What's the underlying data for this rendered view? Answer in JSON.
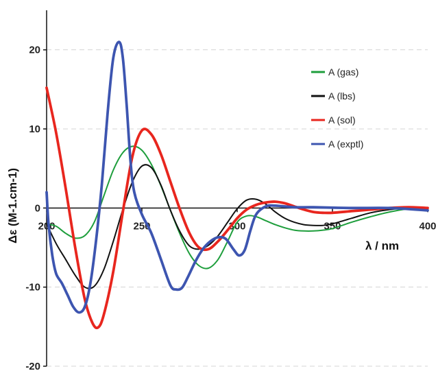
{
  "chart_data": {
    "type": "line",
    "title": "",
    "xlabel": "λ / nm",
    "ylabel": "Δε (M-1.cm-1)",
    "xlim": [
      200,
      400
    ],
    "ylim": [
      -20,
      25
    ],
    "x_ticks": [
      "200",
      "250",
      "300",
      "350",
      "400"
    ],
    "y_ticks": [
      "20",
      "10",
      "0",
      "-10",
      "-20"
    ],
    "grid": "horizontal dashed",
    "legend_position": "right",
    "series": [
      {
        "name": "A (gas)",
        "color": "#1e9e3c",
        "points": [
          [
            200,
            -2
          ],
          [
            205,
            -2.3
          ],
          [
            210,
            -3.2
          ],
          [
            215,
            -3.8
          ],
          [
            220,
            -3.5
          ],
          [
            225,
            -1.8
          ],
          [
            230,
            1.5
          ],
          [
            235,
            4.8
          ],
          [
            240,
            7
          ],
          [
            245,
            7.8
          ],
          [
            250,
            7.3
          ],
          [
            255,
            5.5
          ],
          [
            260,
            2.8
          ],
          [
            265,
            -0.3
          ],
          [
            270,
            -3.3
          ],
          [
            275,
            -5.8
          ],
          [
            280,
            -7.3
          ],
          [
            285,
            -7.6
          ],
          [
            290,
            -6.5
          ],
          [
            295,
            -4.2
          ],
          [
            300,
            -1.8
          ],
          [
            305,
            -1
          ],
          [
            310,
            -1.1
          ],
          [
            315,
            -1.6
          ],
          [
            320,
            -2.1
          ],
          [
            325,
            -2.5
          ],
          [
            330,
            -2.8
          ],
          [
            335,
            -2.9
          ],
          [
            340,
            -2.9
          ],
          [
            345,
            -2.8
          ],
          [
            350,
            -2.6
          ],
          [
            360,
            -1.8
          ],
          [
            370,
            -1.1
          ],
          [
            380,
            -0.5
          ],
          [
            390,
            -0.1
          ],
          [
            400,
            0
          ]
        ]
      },
      {
        "name": "A (lbs)",
        "color": "#111111",
        "points": [
          [
            200,
            -2
          ],
          [
            205,
            -4.5
          ],
          [
            210,
            -6.5
          ],
          [
            215,
            -8.5
          ],
          [
            220,
            -10
          ],
          [
            225,
            -9.9
          ],
          [
            230,
            -7.8
          ],
          [
            235,
            -4.2
          ],
          [
            240,
            -0.2
          ],
          [
            245,
            3.3
          ],
          [
            250,
            5.3
          ],
          [
            255,
            5.1
          ],
          [
            260,
            2.9
          ],
          [
            265,
            -0.3
          ],
          [
            270,
            -3
          ],
          [
            275,
            -4.8
          ],
          [
            280,
            -5.2
          ],
          [
            285,
            -4.7
          ],
          [
            290,
            -3.5
          ],
          [
            295,
            -1.8
          ],
          [
            300,
            -0.1
          ],
          [
            305,
            1
          ],
          [
            310,
            1.1
          ],
          [
            315,
            0.5
          ],
          [
            320,
            -0.5
          ],
          [
            325,
            -1.3
          ],
          [
            330,
            -1.8
          ],
          [
            335,
            -2.1
          ],
          [
            340,
            -2.2
          ],
          [
            345,
            -2.2
          ],
          [
            350,
            -2
          ],
          [
            360,
            -1.3
          ],
          [
            370,
            -0.6
          ],
          [
            380,
            -0.2
          ],
          [
            390,
            0
          ],
          [
            400,
            0
          ]
        ]
      },
      {
        "name": "A (sol)",
        "color": "#e8261e",
        "points": [
          [
            200,
            15.2
          ],
          [
            205,
            9.5
          ],
          [
            210,
            2.5
          ],
          [
            215,
            -5
          ],
          [
            220,
            -11.5
          ],
          [
            224,
            -14.5
          ],
          [
            227,
            -15.1
          ],
          [
            230,
            -13.5
          ],
          [
            235,
            -8
          ],
          [
            240,
            -0.5
          ],
          [
            245,
            6.5
          ],
          [
            250,
            9.8
          ],
          [
            255,
            9.3
          ],
          [
            260,
            6.8
          ],
          [
            265,
            3.3
          ],
          [
            270,
            -0.2
          ],
          [
            275,
            -3.2
          ],
          [
            280,
            -5
          ],
          [
            285,
            -5.2
          ],
          [
            290,
            -4.2
          ],
          [
            295,
            -2.8
          ],
          [
            300,
            -1.3
          ],
          [
            305,
            -0.2
          ],
          [
            310,
            0.4
          ],
          [
            315,
            0.7
          ],
          [
            320,
            0.8
          ],
          [
            325,
            0.6
          ],
          [
            330,
            0.2
          ],
          [
            335,
            -0.2
          ],
          [
            340,
            -0.5
          ],
          [
            345,
            -0.6
          ],
          [
            350,
            -0.6
          ],
          [
            360,
            -0.4
          ],
          [
            370,
            -0.2
          ],
          [
            380,
            0
          ],
          [
            390,
            0.1
          ],
          [
            400,
            0
          ]
        ]
      },
      {
        "name": "A (exptl)",
        "color": "#3d55b0",
        "points": [
          [
            200,
            2
          ],
          [
            201,
            -2
          ],
          [
            203,
            -6
          ],
          [
            205,
            -8.3
          ],
          [
            208,
            -9.5
          ],
          [
            211,
            -11
          ],
          [
            214,
            -12.5
          ],
          [
            217,
            -13.2
          ],
          [
            220,
            -12.5
          ],
          [
            223,
            -9.5
          ],
          [
            226,
            -4
          ],
          [
            229,
            3
          ],
          [
            232,
            12
          ],
          [
            235,
            19
          ],
          [
            238,
            21
          ],
          [
            240,
            19
          ],
          [
            242,
            13
          ],
          [
            244,
            6
          ],
          [
            246,
            2
          ],
          [
            250,
            -0.8
          ],
          [
            255,
            -3.2
          ],
          [
            260,
            -6.5
          ],
          [
            265,
            -9.8
          ],
          [
            268,
            -10.3
          ],
          [
            271,
            -10.1
          ],
          [
            274,
            -8.8
          ],
          [
            278,
            -6.8
          ],
          [
            282,
            -5.2
          ],
          [
            286,
            -4.2
          ],
          [
            290,
            -3.7
          ],
          [
            294,
            -3.9
          ],
          [
            298,
            -5.2
          ],
          [
            301,
            -6
          ],
          [
            304,
            -5.3
          ],
          [
            307,
            -2.8
          ],
          [
            310,
            -0.8
          ],
          [
            315,
            0.2
          ],
          [
            320,
            0.3
          ],
          [
            330,
            0.1
          ],
          [
            340,
            0.1
          ],
          [
            360,
            0
          ],
          [
            380,
            0
          ],
          [
            400,
            -0.3
          ]
        ]
      }
    ]
  }
}
